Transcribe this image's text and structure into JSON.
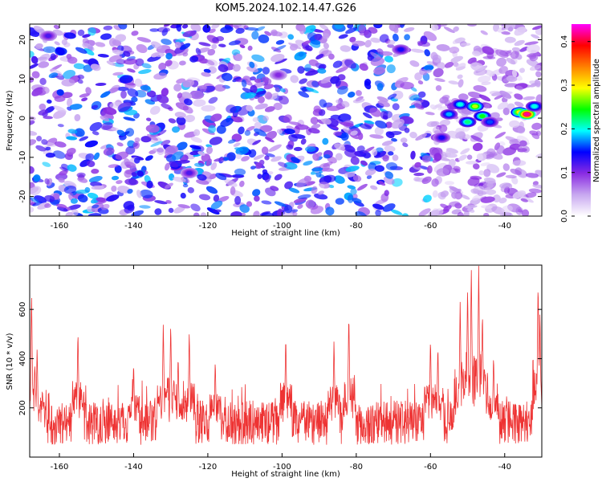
{
  "title": "KOM5.2024.102.14.47.G26",
  "chart_data": [
    {
      "type": "heatmap",
      "xlabel": "Height of straight line (km)",
      "ylabel": "Frequency (Hz)",
      "xlim": [
        -168,
        -30
      ],
      "ylim": [
        -25,
        24
      ],
      "x_ticks": [
        -160,
        -140,
        -120,
        -100,
        -80,
        -60,
        -40
      ],
      "y_ticks": [
        -20,
        -10,
        0,
        10,
        20
      ],
      "colorbar": {
        "label": "Normalized spectral amplitude",
        "range": [
          0,
          0.44
        ],
        "ticks": [
          0.0,
          0.1,
          0.2,
          0.3,
          0.4
        ],
        "colormap": [
          "#ffffff",
          "#c8a8f0",
          "#8a2be2",
          "#0000ff",
          "#00ffff",
          "#00ff00",
          "#ffff00",
          "#ff8000",
          "#ff0000",
          "#ff00ff"
        ]
      },
      "background_level": 0.05,
      "hotspots": [
        {
          "x": -57,
          "y": -5,
          "value": 0.14
        },
        {
          "x": -55,
          "y": 1,
          "value": 0.18
        },
        {
          "x": -52,
          "y": 3.5,
          "value": 0.2
        },
        {
          "x": -50,
          "y": -1,
          "value": 0.22
        },
        {
          "x": -48,
          "y": 3,
          "value": 0.28
        },
        {
          "x": -46,
          "y": 0.5,
          "value": 0.24
        },
        {
          "x": -44,
          "y": -1,
          "value": 0.16
        },
        {
          "x": -36,
          "y": 1.5,
          "value": 0.3
        },
        {
          "x": -34,
          "y": 1,
          "value": 0.42
        },
        {
          "x": -32,
          "y": 3,
          "value": 0.2
        },
        {
          "x": -68,
          "y": 17.5,
          "value": 0.14
        },
        {
          "x": -125,
          "y": -14,
          "value": 0.12
        },
        {
          "x": -163,
          "y": 21,
          "value": 0.12
        },
        {
          "x": -101,
          "y": 11,
          "value": 0.1
        }
      ]
    },
    {
      "type": "line",
      "xlabel": "Height of straight line (km)",
      "ylabel": "SNR (10 * v/v)",
      "xlim": [
        -168,
        -30
      ],
      "ylim": [
        0,
        780
      ],
      "x_ticks": [
        -160,
        -140,
        -120,
        -100,
        -80,
        -60,
        -40
      ],
      "y_ticks": [
        200,
        400,
        600
      ],
      "series": [
        {
          "color": "#ee3333",
          "baseline": 140,
          "noise": 90,
          "peaks": [
            {
              "x": -167.5,
              "value": 670
            },
            {
              "x": -166,
              "value": 450
            },
            {
              "x": -155,
              "value": 520
            },
            {
              "x": -140,
              "value": 390
            },
            {
              "x": -132,
              "value": 550
            },
            {
              "x": -130,
              "value": 550
            },
            {
              "x": -128,
              "value": 420
            },
            {
              "x": -125,
              "value": 520
            },
            {
              "x": -118,
              "value": 400
            },
            {
              "x": -99,
              "value": 500
            },
            {
              "x": -86,
              "value": 480
            },
            {
              "x": -82,
              "value": 590
            },
            {
              "x": -60,
              "value": 490
            },
            {
              "x": -58,
              "value": 460
            },
            {
              "x": -52,
              "value": 640
            },
            {
              "x": -50,
              "value": 700
            },
            {
              "x": -49,
              "value": 780
            },
            {
              "x": -47,
              "value": 780
            },
            {
              "x": -46,
              "value": 600
            },
            {
              "x": -43,
              "value": 420
            },
            {
              "x": -31,
              "value": 720
            },
            {
              "x": -30.5,
              "value": 600
            }
          ]
        }
      ]
    }
  ]
}
